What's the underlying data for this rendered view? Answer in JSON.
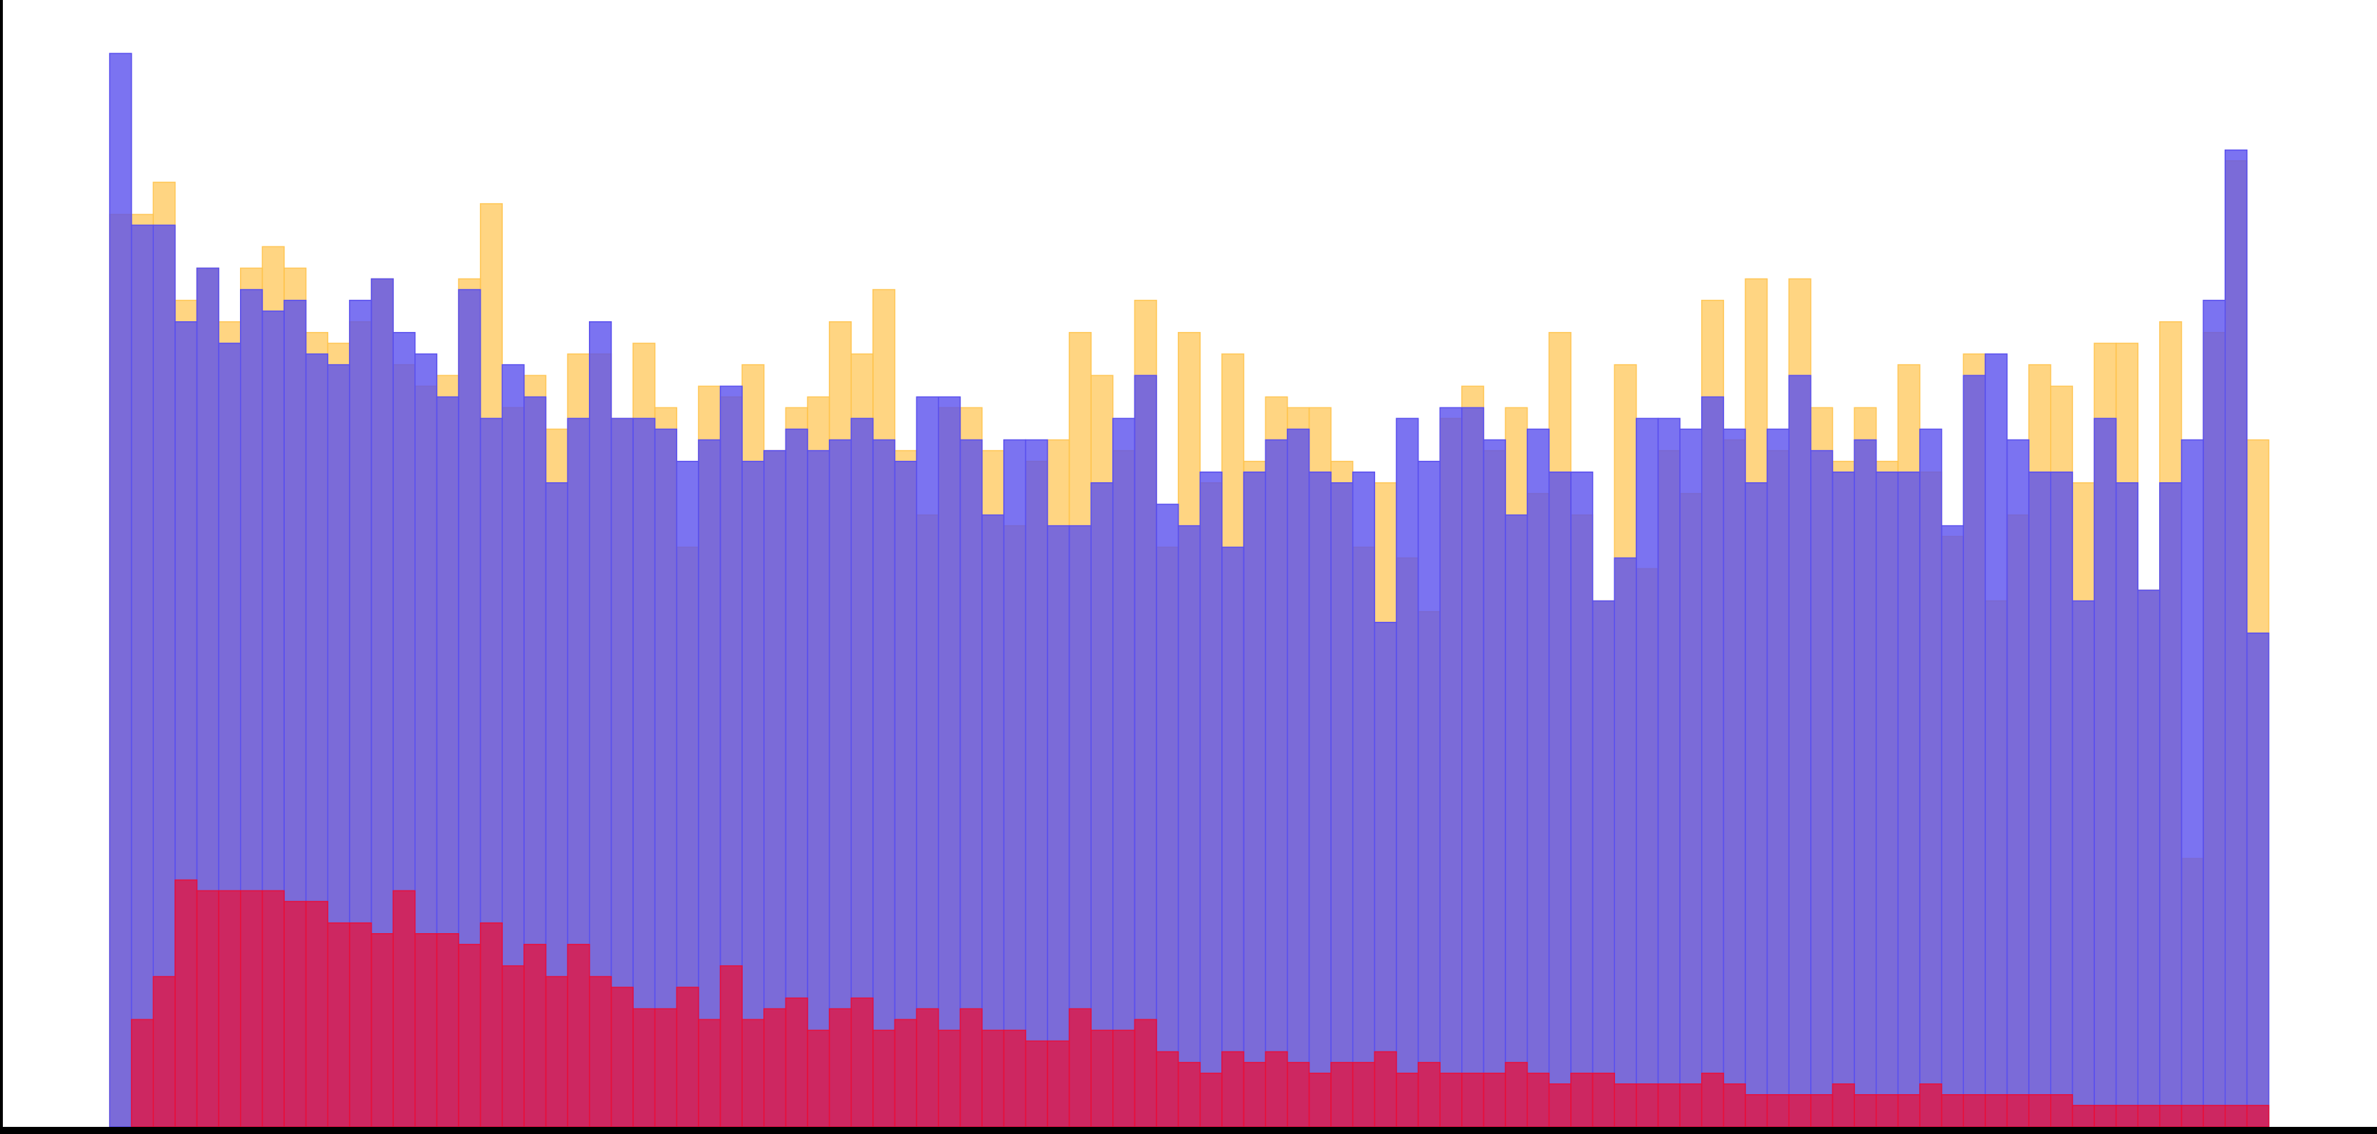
{
  "chart_data": {
    "type": "bar",
    "overlay": true,
    "grid": false,
    "legend": "none",
    "title": "",
    "xlabel": "",
    "ylabel": "",
    "ylim": [
      0,
      100
    ],
    "x_count": 99,
    "series": [
      {
        "color": "#ffc34d",
        "opacity": 0.7,
        "values": [
          85,
          85,
          88,
          77,
          80,
          75,
          80,
          82,
          80,
          74,
          73,
          75,
          79,
          71,
          69,
          70,
          79,
          86,
          67,
          70,
          65,
          72,
          72,
          66,
          73,
          67,
          54,
          69,
          68,
          71,
          63,
          67,
          68,
          75,
          72,
          78,
          63,
          57,
          67,
          67,
          63,
          56,
          62,
          64,
          74,
          70,
          63,
          77,
          54,
          74,
          60,
          72,
          62,
          68,
          67,
          67,
          62,
          54,
          60,
          53,
          48,
          66,
          69,
          63,
          67,
          59,
          74,
          57,
          49,
          71,
          52,
          63,
          59,
          77,
          64,
          79,
          63,
          79,
          67,
          62,
          67,
          62,
          71,
          61,
          55,
          72,
          49,
          57,
          71,
          69,
          60,
          73,
          73,
          50,
          75,
          25,
          74,
          90,
          64
        ]
      },
      {
        "color": "#5a50ee",
        "opacity": 0.8,
        "values": [
          100,
          84,
          84,
          75,
          80,
          73,
          78,
          76,
          77,
          72,
          71,
          77,
          79,
          74,
          72,
          68,
          78,
          66,
          71,
          68,
          60,
          66,
          75,
          66,
          66,
          65,
          62,
          64,
          69,
          62,
          63,
          65,
          63,
          64,
          66,
          64,
          62,
          68,
          68,
          64,
          57,
          64,
          64,
          56,
          56,
          60,
          66,
          70,
          58,
          56,
          61,
          54,
          61,
          64,
          65,
          61,
          60,
          61,
          47,
          66,
          62,
          67,
          67,
          64,
          57,
          65,
          61,
          61,
          49,
          53,
          66,
          66,
          65,
          68,
          65,
          60,
          65,
          70,
          63,
          61,
          64,
          61,
          61,
          65,
          56,
          70,
          72,
          64,
          61,
          61,
          49,
          66,
          60,
          50,
          60,
          64,
          77,
          91,
          46
        ]
      },
      {
        "color": "#e8103a",
        "opacity": 0.75,
        "values": [
          0,
          10,
          14,
          23,
          22,
          22,
          22,
          22,
          21,
          21,
          19,
          19,
          18,
          22,
          18,
          18,
          17,
          19,
          15,
          17,
          14,
          17,
          14,
          13,
          11,
          11,
          13,
          10,
          15,
          10,
          11,
          12,
          9,
          11,
          12,
          9,
          10,
          11,
          9,
          11,
          9,
          9,
          8,
          8,
          11,
          9,
          9,
          10,
          7,
          6,
          5,
          7,
          6,
          7,
          6,
          5,
          6,
          6,
          7,
          5,
          6,
          5,
          5,
          5,
          6,
          5,
          4,
          5,
          5,
          4,
          4,
          4,
          4,
          5,
          4,
          3,
          3,
          3,
          3,
          4,
          3,
          3,
          3,
          4,
          3,
          3,
          3,
          3,
          3,
          3,
          2,
          2,
          2,
          2,
          2,
          2,
          2,
          2,
          2
        ]
      }
    ]
  }
}
